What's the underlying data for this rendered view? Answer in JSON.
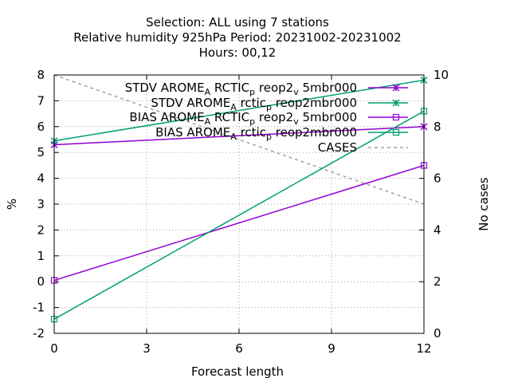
{
  "chart_data": {
    "type": "line",
    "title_lines": [
      "Selection: ALL using     7 stations",
      "Relative humidity 925hPa   Period: 20231002-20231002",
      "Hours:  00,12"
    ],
    "xlabel": "Forecast length",
    "ylabel": "%",
    "y2label": "No cases",
    "xlim": [
      0,
      12
    ],
    "ylim": [
      -2,
      8
    ],
    "y2lim": [
      0,
      10
    ],
    "x_ticks": [
      0,
      3,
      6,
      9,
      12
    ],
    "y_ticks": [
      -2,
      -1,
      0,
      1,
      2,
      3,
      4,
      5,
      6,
      7,
      8
    ],
    "y2_ticks": [
      0,
      2,
      4,
      6,
      8,
      10
    ],
    "grid": true,
    "legend_position": "top-right",
    "series": [
      {
        "name": "STDV AROME_ARCTIC_preop2_v5mbr000",
        "legend_main": [
          "STDV AROME",
          "RCTIC",
          "reop2",
          "5mbr000"
        ],
        "legend_subs": [
          "A",
          "p",
          "v"
        ],
        "axis": "y1",
        "color": "#9400d3",
        "marker": "x-star",
        "x": [
          0,
          12
        ],
        "y": [
          5.3,
          6.0
        ]
      },
      {
        "name": "STDV AROME_Arctic_preop2mbr000",
        "legend_main": [
          "STDV AROME",
          "rctic",
          "reop2mbr000"
        ],
        "legend_subs": [
          "A",
          "p"
        ],
        "axis": "y1",
        "color": "#009e73",
        "marker": "x-star",
        "x": [
          0,
          12
        ],
        "y": [
          5.45,
          7.8
        ]
      },
      {
        "name": "BIAS AROME_ARCTIC_preop2_v5mbr000",
        "legend_main": [
          "BIAS AROME",
          "RCTIC",
          "reop2",
          "5mbr000"
        ],
        "legend_subs": [
          "A",
          "p",
          "v"
        ],
        "axis": "y1",
        "color": "#9400d3",
        "marker": "square",
        "x": [
          0,
          12
        ],
        "y": [
          0.05,
          4.5
        ]
      },
      {
        "name": "BIAS AROME_Arctic_preop2mbr000",
        "legend_main": [
          "BIAS AROME",
          "rctic",
          "reop2mbr000"
        ],
        "legend_subs": [
          "A",
          "p"
        ],
        "axis": "y1",
        "color": "#009e73",
        "marker": "square",
        "x": [
          0,
          12
        ],
        "y": [
          -1.45,
          6.6
        ]
      },
      {
        "name": "CASES",
        "legend_main": [
          "CASES"
        ],
        "legend_subs": [],
        "axis": "y2",
        "color": "#a0a0a0",
        "marker": "none",
        "dashed": true,
        "x": [
          0,
          12
        ],
        "y": [
          10,
          5
        ]
      }
    ]
  }
}
